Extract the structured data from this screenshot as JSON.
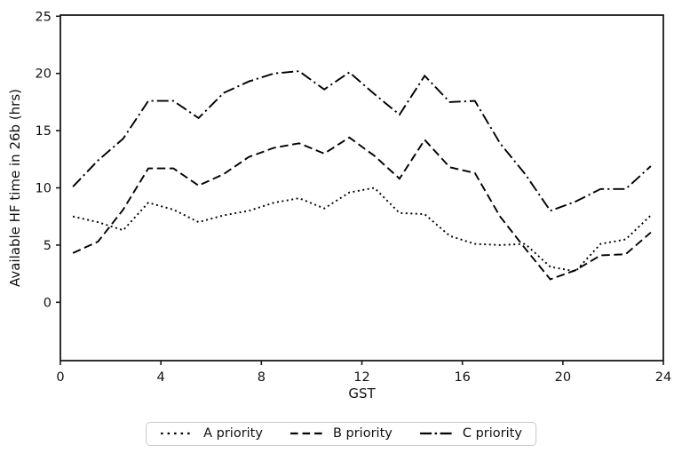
{
  "figure": {
    "background": "#ffffff",
    "line_color": "#000000",
    "axis_color": "#1a1a1a"
  },
  "chart_data": {
    "type": "line",
    "title": "",
    "xlabel": "GST",
    "ylabel": "Available HF time in 26b (hrs)",
    "xlim": [
      0,
      24
    ],
    "ylim": [
      -5.1,
      25.1
    ],
    "xticks": [
      0,
      4,
      8,
      12,
      16,
      20,
      24
    ],
    "yticks": [
      0,
      5,
      10,
      15,
      20,
      25
    ],
    "grid": false,
    "legend_position": "lower center, outside axes",
    "line_color": "#000000",
    "x": [
      0.5,
      1.5,
      2.5,
      3.5,
      4.5,
      5.5,
      6.5,
      7.5,
      8.5,
      9.5,
      10.5,
      11.5,
      12.5,
      13.5,
      14.5,
      15.5,
      16.5,
      17.5,
      18.5,
      19.5,
      20.5,
      21.5,
      22.5,
      23.5
    ],
    "series": [
      {
        "name": "A priority",
        "linestyle": "dotted",
        "values": [
          7.5,
          7.0,
          6.3,
          8.7,
          8.1,
          7.0,
          7.6,
          8.0,
          8.7,
          9.1,
          8.2,
          9.6,
          10.0,
          7.8,
          7.7,
          5.8,
          5.1,
          5.0,
          5.1,
          3.1,
          2.7,
          5.1,
          5.5,
          7.6
        ]
      },
      {
        "name": "B priority",
        "linestyle": "dashed",
        "values": [
          4.3,
          5.3,
          8.1,
          11.7,
          11.7,
          10.2,
          11.2,
          12.7,
          13.5,
          13.9,
          13.0,
          14.4,
          12.8,
          10.8,
          14.2,
          11.8,
          11.3,
          7.5,
          4.7,
          2.0,
          2.8,
          4.1,
          4.2,
          6.1
        ]
      },
      {
        "name": "C priority",
        "linestyle": "dashdot",
        "values": [
          10.1,
          12.4,
          14.3,
          17.6,
          17.6,
          16.1,
          18.3,
          19.3,
          20.0,
          20.2,
          18.6,
          20.1,
          18.2,
          16.4,
          19.8,
          17.5,
          17.6,
          13.9,
          11.2,
          8.0,
          8.8,
          9.9,
          9.9,
          11.9
        ]
      }
    ]
  }
}
